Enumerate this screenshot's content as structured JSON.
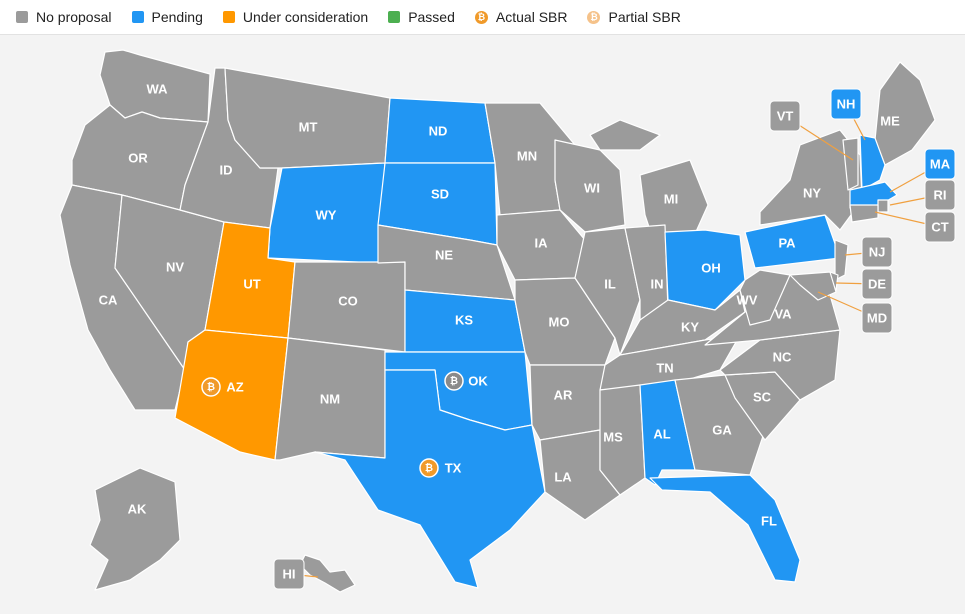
{
  "legend": [
    {
      "label": "No proposal",
      "type": "swatch",
      "color": "#9b9b9b"
    },
    {
      "label": "Pending",
      "type": "swatch",
      "color": "#2196f3"
    },
    {
      "label": "Under consideration",
      "type": "swatch",
      "color": "#ff9800"
    },
    {
      "label": "Passed",
      "type": "swatch",
      "color": "#4caf50"
    },
    {
      "label": "Actual SBR",
      "type": "coin",
      "color": "#f09a2a"
    },
    {
      "label": "Partial SBR",
      "type": "coin",
      "color": "#f5c28a"
    }
  ],
  "colors": {
    "none": "#9b9b9b",
    "pending": "#2196f3",
    "consideration": "#ff9800",
    "passed": "#4caf50",
    "coin": "#f09a2a",
    "coin_gray": "#8a8a8a"
  },
  "states": [
    {
      "abbr": "WA",
      "status": "none"
    },
    {
      "abbr": "OR",
      "status": "none"
    },
    {
      "abbr": "CA",
      "status": "none"
    },
    {
      "abbr": "NV",
      "status": "none"
    },
    {
      "abbr": "ID",
      "status": "none"
    },
    {
      "abbr": "MT",
      "status": "none"
    },
    {
      "abbr": "WY",
      "status": "pending"
    },
    {
      "abbr": "UT",
      "status": "consideration"
    },
    {
      "abbr": "AZ",
      "status": "consideration",
      "icon": "actual-sbr"
    },
    {
      "abbr": "CO",
      "status": "none"
    },
    {
      "abbr": "NM",
      "status": "none"
    },
    {
      "abbr": "ND",
      "status": "pending"
    },
    {
      "abbr": "SD",
      "status": "pending"
    },
    {
      "abbr": "NE",
      "status": "none"
    },
    {
      "abbr": "KS",
      "status": "pending"
    },
    {
      "abbr": "OK",
      "status": "pending",
      "icon": "partial-sbr"
    },
    {
      "abbr": "TX",
      "status": "pending",
      "icon": "actual-sbr"
    },
    {
      "abbr": "MN",
      "status": "none"
    },
    {
      "abbr": "IA",
      "status": "none"
    },
    {
      "abbr": "MO",
      "status": "none"
    },
    {
      "abbr": "AR",
      "status": "none"
    },
    {
      "abbr": "LA",
      "status": "none"
    },
    {
      "abbr": "WI",
      "status": "none"
    },
    {
      "abbr": "IL",
      "status": "none"
    },
    {
      "abbr": "MI",
      "status": "none"
    },
    {
      "abbr": "IN",
      "status": "none"
    },
    {
      "abbr": "OH",
      "status": "pending"
    },
    {
      "abbr": "KY",
      "status": "none"
    },
    {
      "abbr": "TN",
      "status": "none"
    },
    {
      "abbr": "MS",
      "status": "none"
    },
    {
      "abbr": "AL",
      "status": "pending"
    },
    {
      "abbr": "GA",
      "status": "none"
    },
    {
      "abbr": "FL",
      "status": "pending"
    },
    {
      "abbr": "SC",
      "status": "none"
    },
    {
      "abbr": "NC",
      "status": "none"
    },
    {
      "abbr": "VA",
      "status": "none"
    },
    {
      "abbr": "WV",
      "status": "none"
    },
    {
      "abbr": "PA",
      "status": "pending"
    },
    {
      "abbr": "NY",
      "status": "none"
    },
    {
      "abbr": "ME",
      "status": "none"
    },
    {
      "abbr": "AK",
      "status": "none"
    },
    {
      "abbr": "NH",
      "status": "pending"
    },
    {
      "abbr": "VT",
      "status": "none"
    },
    {
      "abbr": "MA",
      "status": "pending"
    },
    {
      "abbr": "RI",
      "status": "none"
    },
    {
      "abbr": "CT",
      "status": "none"
    },
    {
      "abbr": "NJ",
      "status": "none"
    },
    {
      "abbr": "DE",
      "status": "none"
    },
    {
      "abbr": "MD",
      "status": "none"
    },
    {
      "abbr": "HI",
      "status": "none"
    }
  ]
}
